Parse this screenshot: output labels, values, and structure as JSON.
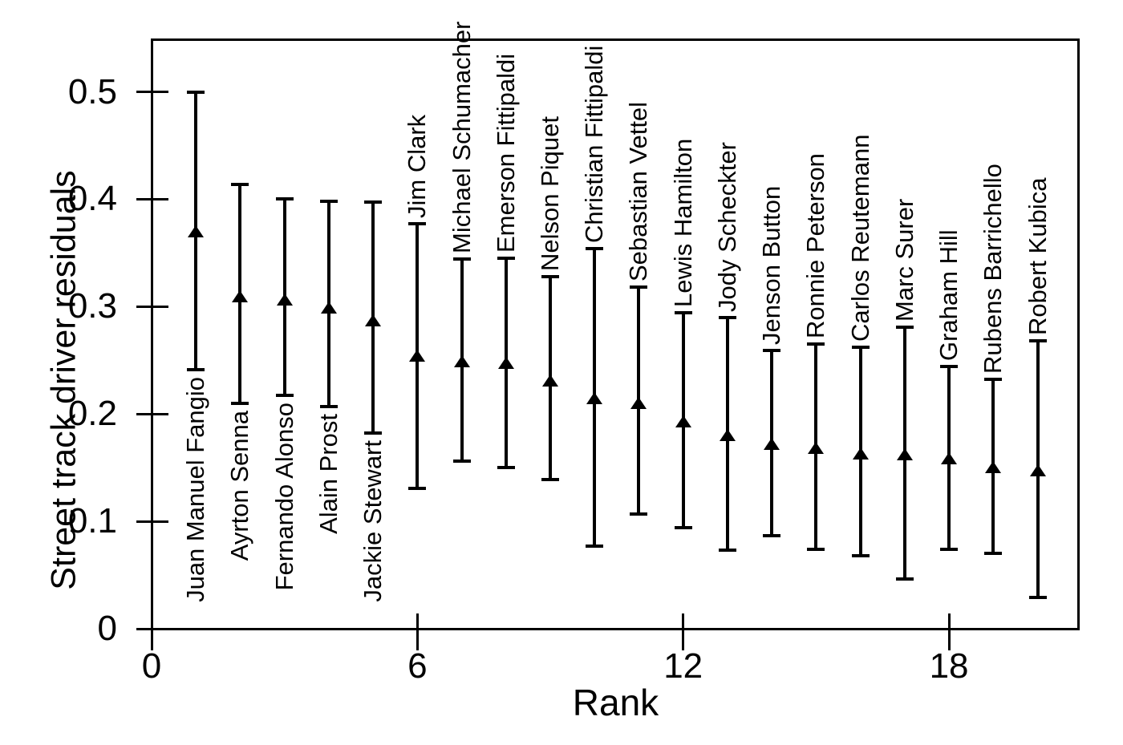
{
  "figure": {
    "background_color": "#ffffff",
    "line_color": "#000000",
    "text_color": "#000000"
  },
  "chart_data": {
    "type": "scatter",
    "title": "",
    "xlabel": "Rank",
    "ylabel": "Street track driver residuals",
    "xlim": [
      0,
      20.95
    ],
    "ylim": [
      0,
      0.549
    ],
    "grid": false,
    "legend": "none",
    "marker": "filled-triangle-up",
    "error_bars": true,
    "x_ticks": [
      {
        "value": 0,
        "label": "0"
      },
      {
        "value": 6,
        "label": "6"
      },
      {
        "value": 12,
        "label": "12"
      },
      {
        "value": 18,
        "label": "18"
      }
    ],
    "y_ticks": [
      {
        "value": 0.0,
        "label": "0"
      },
      {
        "value": 0.1,
        "label": "0.1"
      },
      {
        "value": 0.2,
        "label": "0.2"
      },
      {
        "value": 0.3,
        "label": "0.3"
      },
      {
        "value": 0.4,
        "label": "0.4"
      },
      {
        "value": 0.5,
        "label": "0.5"
      }
    ],
    "series": [
      {
        "rank": 1,
        "driver": "Juan Manuel Fangio",
        "value": 0.37,
        "ci_low": 0.241,
        "ci_high": 0.5,
        "label_side": "below"
      },
      {
        "rank": 2,
        "driver": "Ayrton Senna",
        "value": 0.309,
        "ci_low": 0.21,
        "ci_high": 0.414,
        "label_side": "below"
      },
      {
        "rank": 3,
        "driver": "Fernando Alonso",
        "value": 0.306,
        "ci_low": 0.217,
        "ci_high": 0.4,
        "label_side": "below"
      },
      {
        "rank": 4,
        "driver": "Alain Prost",
        "value": 0.299,
        "ci_low": 0.207,
        "ci_high": 0.398,
        "label_side": "below"
      },
      {
        "rank": 5,
        "driver": "Jackie Stewart",
        "value": 0.287,
        "ci_low": 0.182,
        "ci_high": 0.397,
        "label_side": "below"
      },
      {
        "rank": 6,
        "driver": "Jim Clark",
        "value": 0.254,
        "ci_low": 0.131,
        "ci_high": 0.377,
        "label_side": "above"
      },
      {
        "rank": 7,
        "driver": "Michael Schumacher",
        "value": 0.249,
        "ci_low": 0.156,
        "ci_high": 0.344,
        "label_side": "above"
      },
      {
        "rank": 8,
        "driver": "Emerson Fittipaldi",
        "value": 0.247,
        "ci_low": 0.15,
        "ci_high": 0.345,
        "label_side": "above"
      },
      {
        "rank": 9,
        "driver": "Nelson Piquet",
        "value": 0.231,
        "ci_low": 0.139,
        "ci_high": 0.328,
        "label_side": "above"
      },
      {
        "rank": 10,
        "driver": "Christian Fittipaldi",
        "value": 0.214,
        "ci_low": 0.077,
        "ci_high": 0.354,
        "label_side": "above"
      },
      {
        "rank": 11,
        "driver": "Sebastian Vettel",
        "value": 0.21,
        "ci_low": 0.107,
        "ci_high": 0.318,
        "label_side": "above"
      },
      {
        "rank": 12,
        "driver": "Lewis Hamilton",
        "value": 0.193,
        "ci_low": 0.094,
        "ci_high": 0.294,
        "label_side": "above"
      },
      {
        "rank": 13,
        "driver": "Jody Scheckter",
        "value": 0.18,
        "ci_low": 0.073,
        "ci_high": 0.29,
        "label_side": "above"
      },
      {
        "rank": 14,
        "driver": "Jenson Button",
        "value": 0.172,
        "ci_low": 0.087,
        "ci_high": 0.259,
        "label_side": "above"
      },
      {
        "rank": 15,
        "driver": "Ronnie Peterson",
        "value": 0.168,
        "ci_low": 0.074,
        "ci_high": 0.265,
        "label_side": "above"
      },
      {
        "rank": 16,
        "driver": "Carlos Reutemann",
        "value": 0.163,
        "ci_low": 0.068,
        "ci_high": 0.262,
        "label_side": "above"
      },
      {
        "rank": 17,
        "driver": "Marc Surer",
        "value": 0.162,
        "ci_low": 0.046,
        "ci_high": 0.281,
        "label_side": "above"
      },
      {
        "rank": 18,
        "driver": "Graham Hill",
        "value": 0.158,
        "ci_low": 0.074,
        "ci_high": 0.244,
        "label_side": "above"
      },
      {
        "rank": 19,
        "driver": "Rubens Barrichello",
        "value": 0.15,
        "ci_low": 0.07,
        "ci_high": 0.232,
        "label_side": "above"
      },
      {
        "rank": 20,
        "driver": "Robert Kubica",
        "value": 0.147,
        "ci_low": 0.029,
        "ci_high": 0.268,
        "label_side": "above"
      }
    ]
  }
}
